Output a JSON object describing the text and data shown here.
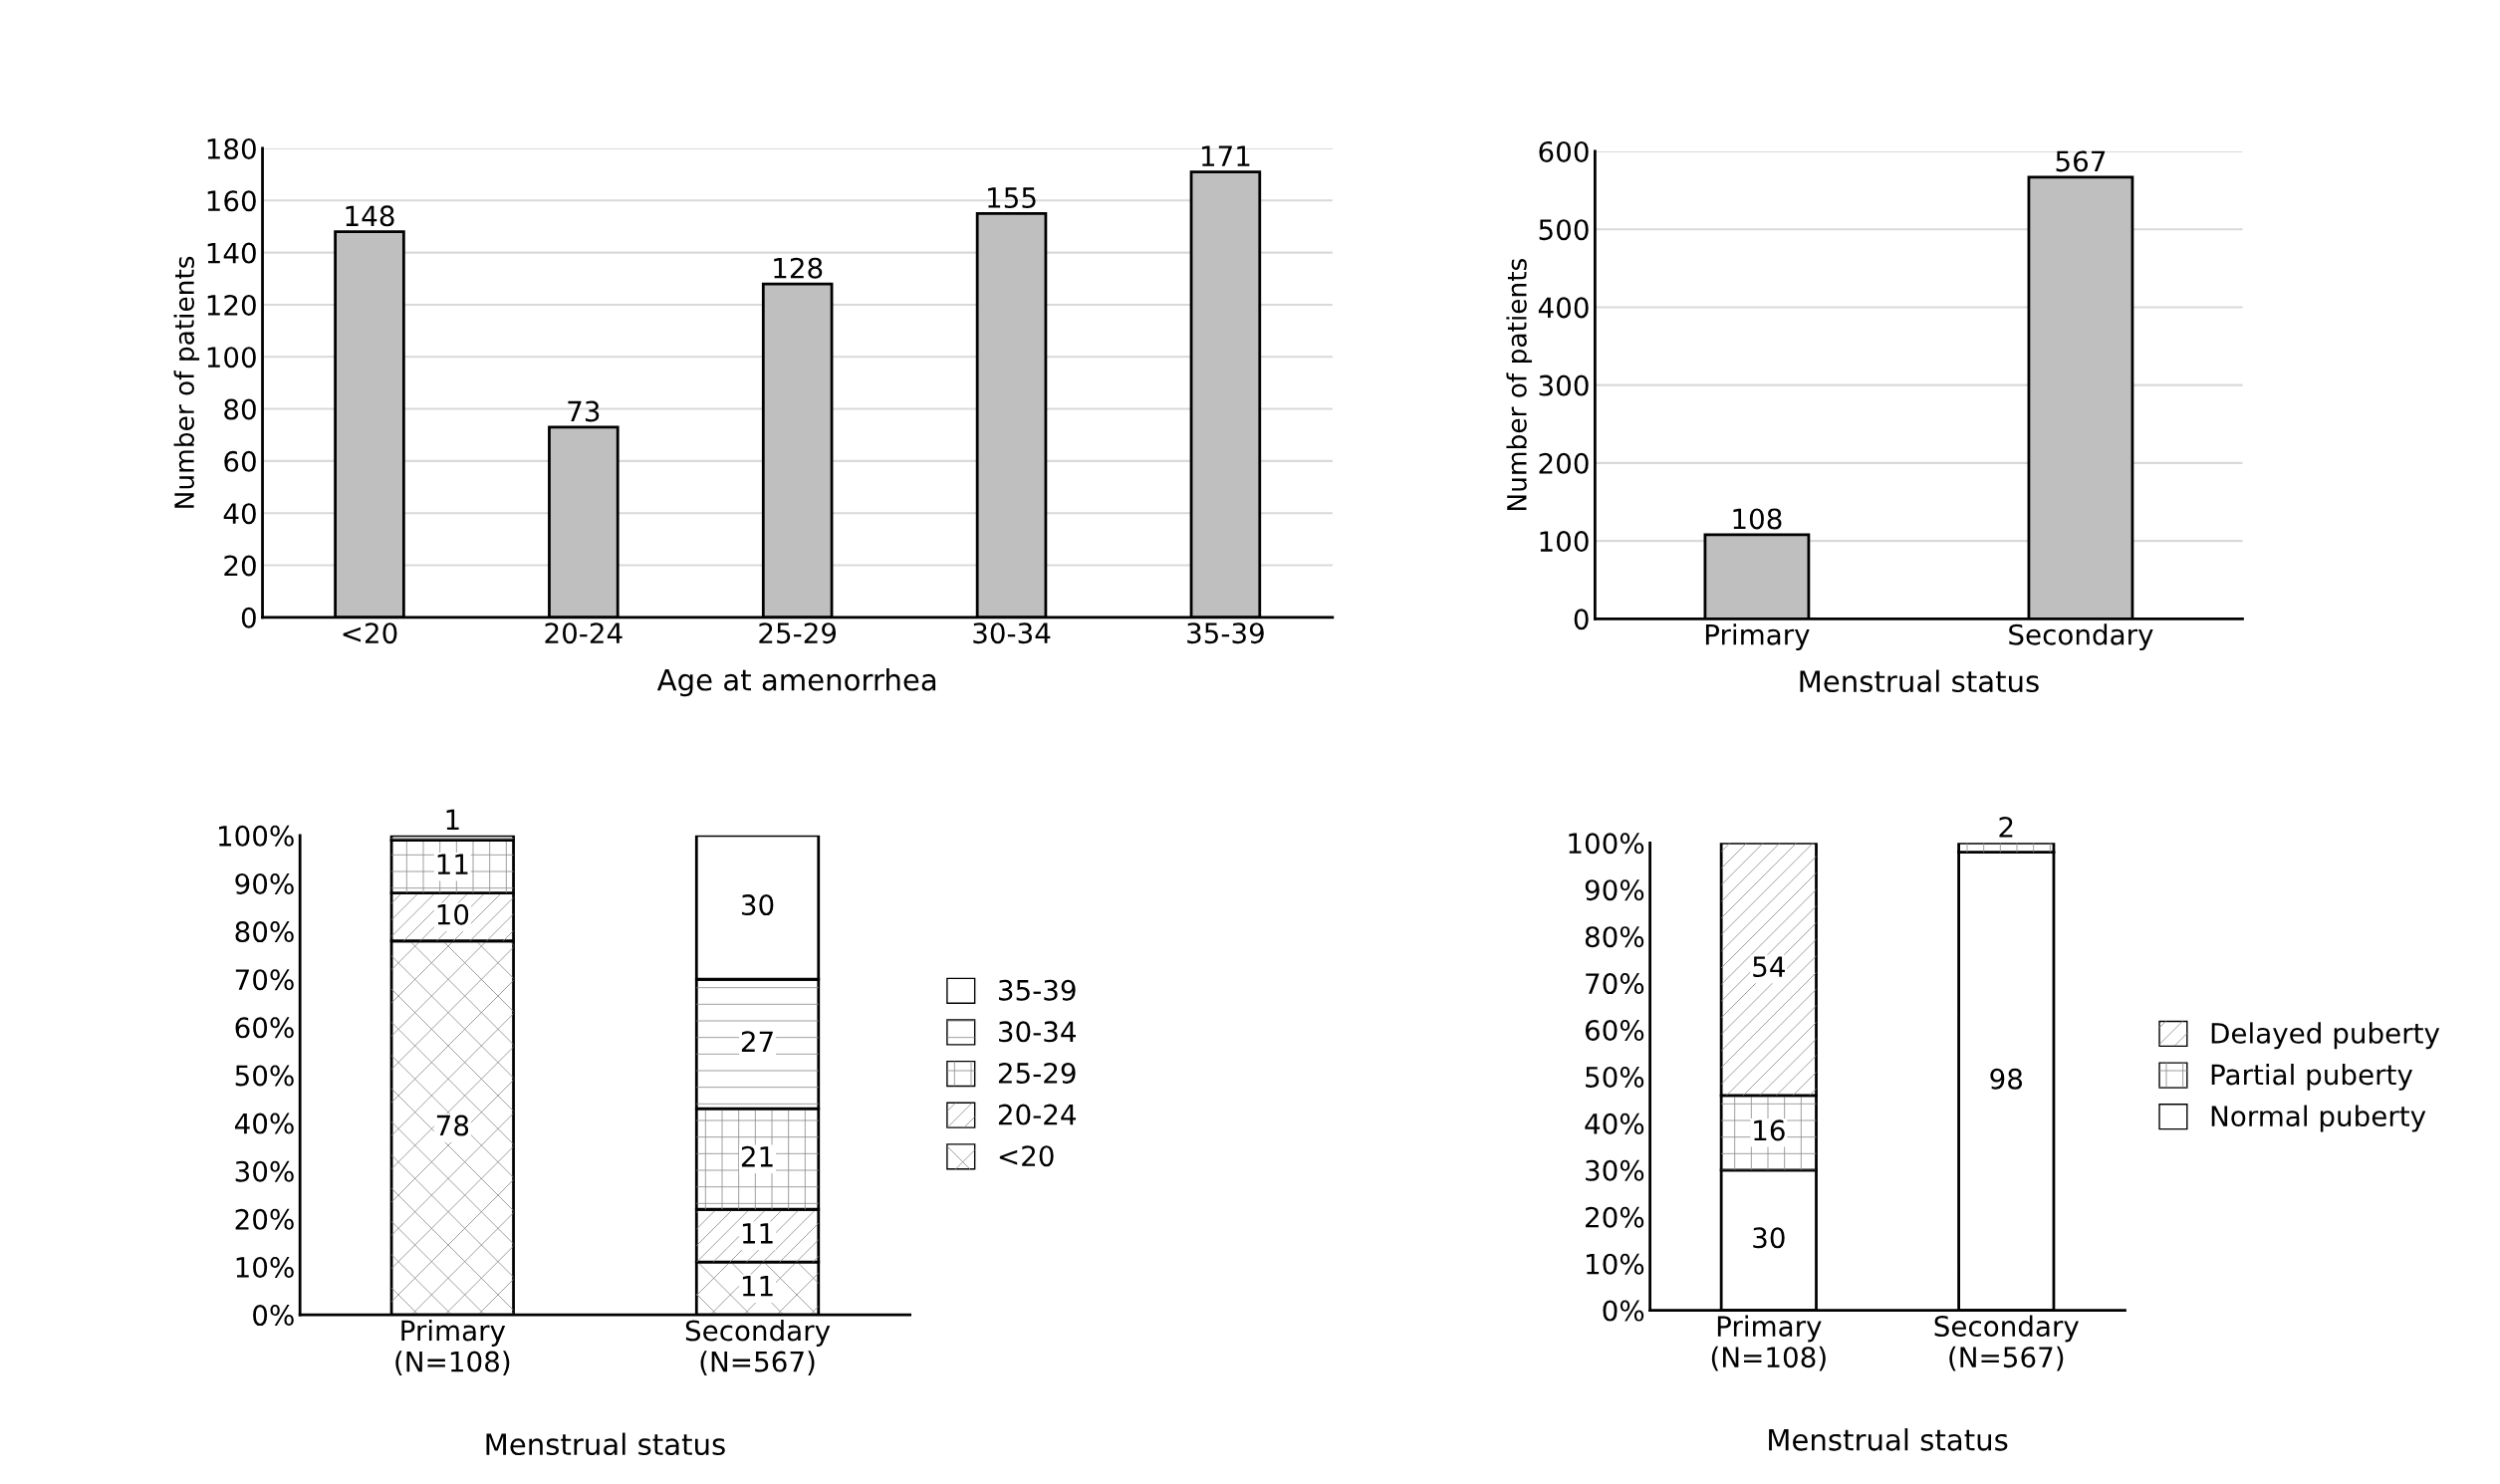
{
  "chart_data": [
    {
      "type": "bar",
      "categories": [
        "<20",
        "20-24",
        "25-29",
        "30-34",
        "35-39"
      ],
      "values": [
        148,
        73,
        128,
        155,
        171
      ],
      "color": "#bfbfbf",
      "xlabel": "Age at amenorrhea",
      "ylabel": "Number of patients",
      "ylim": [
        0,
        180
      ],
      "yticks": [
        0,
        20,
        40,
        60,
        80,
        100,
        120,
        140,
        160,
        180
      ],
      "grid": "y",
      "data_labels": true
    },
    {
      "type": "bar",
      "categories": [
        "Primary",
        "Secondary"
      ],
      "values": [
        108,
        567
      ],
      "color": "#bfbfbf",
      "xlabel": "Menstrual status",
      "ylabel": "Number of patients",
      "ylim": [
        0,
        600
      ],
      "yticks": [
        0,
        100,
        200,
        300,
        400,
        500,
        600
      ],
      "grid": "y",
      "data_labels": true
    },
    {
      "type": "bar",
      "stacked": true,
      "categories": [
        "Primary\n(N=108)",
        "Secondary\n(N=567)"
      ],
      "xlabel": "Menstrual status",
      "ylim": [
        0,
        100
      ],
      "yticks": [
        {
          "value": 0,
          "label": "0%"
        },
        {
          "value": 10,
          "label": "10%"
        },
        {
          "value": 20,
          "label": "20%"
        },
        {
          "value": 30,
          "label": "30%"
        },
        {
          "value": 40,
          "label": "40%"
        },
        {
          "value": 50,
          "label": "50%"
        },
        {
          "value": 60,
          "label": "60%"
        },
        {
          "value": 70,
          "label": "70%"
        },
        {
          "value": 80,
          "label": "80%"
        },
        {
          "value": 90,
          "label": "90%"
        },
        {
          "value": 100,
          "label": "100%"
        }
      ],
      "legend": "right",
      "data_labels": true,
      "series": [
        {
          "name": "<20",
          "color": "#ffffff",
          "values": [
            78,
            11
          ]
        },
        {
          "name": "20-24",
          "color": "#ffffff",
          "values": [
            10,
            11
          ]
        },
        {
          "name": "25-29",
          "color": "#ffffff",
          "values": [
            11,
            21
          ]
        },
        {
          "name": "30-34",
          "color": "#ffffff",
          "values": [
            1,
            27
          ]
        },
        {
          "name": "35-39",
          "color": "#ffffff",
          "values": [
            null,
            30
          ]
        }
      ]
    },
    {
      "type": "bar",
      "stacked": true,
      "categories": [
        "Primary\n(N=108)",
        "Secondary\n(N=567)"
      ],
      "xlabel": "Menstrual status",
      "ylim": [
        0,
        100
      ],
      "yticks": [
        {
          "value": 0,
          "label": "0%"
        },
        {
          "value": 10,
          "label": "10%"
        },
        {
          "value": 20,
          "label": "20%"
        },
        {
          "value": 30,
          "label": "30%"
        },
        {
          "value": 40,
          "label": "40%"
        },
        {
          "value": 50,
          "label": "50%"
        },
        {
          "value": 60,
          "label": "60%"
        },
        {
          "value": 70,
          "label": "70%"
        },
        {
          "value": 80,
          "label": "80%"
        },
        {
          "value": 90,
          "label": "90%"
        },
        {
          "value": 100,
          "label": "100%"
        }
      ],
      "legend": "right",
      "data_labels": true,
      "series": [
        {
          "name": "Normal puberty",
          "color": "#ffffff",
          "values": [
            30,
            98
          ]
        },
        {
          "name": "Partial puberty",
          "color": "#ffffff",
          "values": [
            16,
            2
          ]
        },
        {
          "name": "Delayed puberty",
          "color": "#ffffff",
          "values": [
            54,
            null
          ]
        }
      ]
    }
  ]
}
